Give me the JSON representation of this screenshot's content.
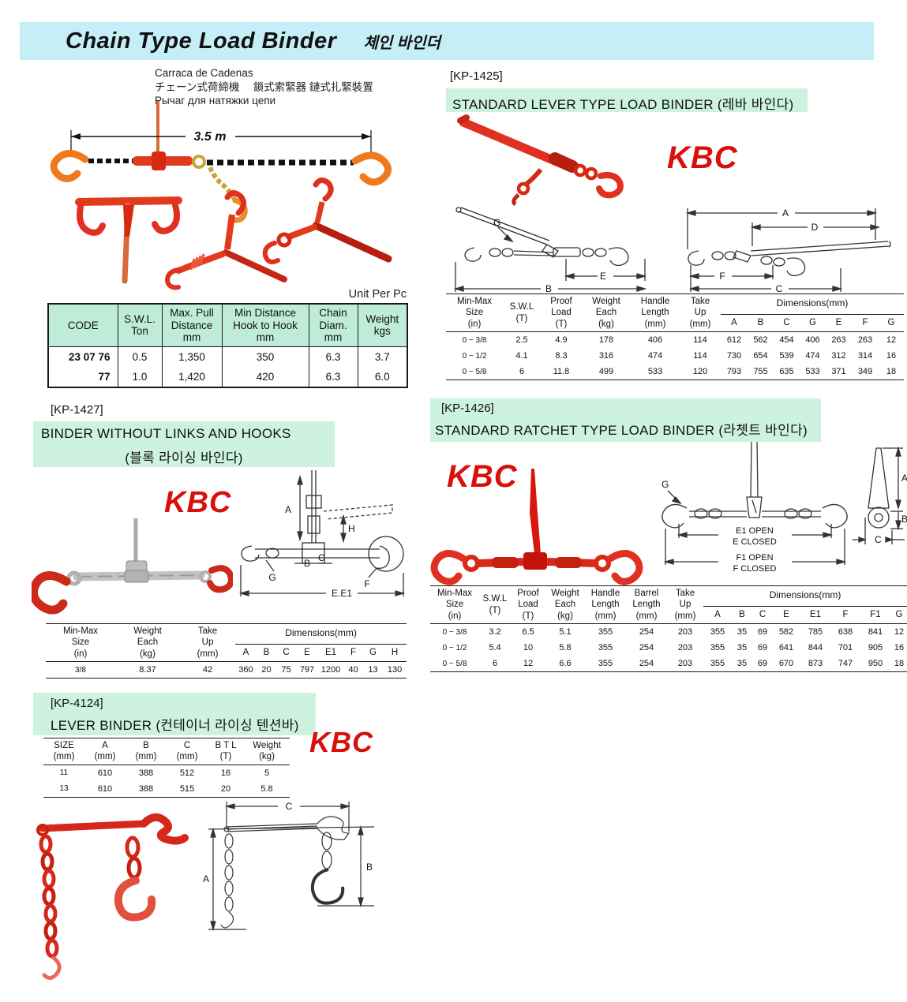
{
  "page": {
    "title": "Chain Type Load Binder",
    "title_kr": "체인 바인더",
    "brand": "KBC",
    "languages": {
      "es": "Carraca de Cadenas",
      "ja_zh": "チェーン式荷締機　 鎖式索緊器 鏈式扎緊裝置",
      "ru": "Рычаг для натяжки цепи"
    },
    "unit_note": "Unit Per Pc"
  },
  "overview": {
    "length_label": "3.5 m"
  },
  "main_table": {
    "headers": [
      "CODE",
      "S.W.L.\nTon",
      "Max. Pull\nDistance\nmm",
      "Min Distance\nHook to Hook\nmm",
      "Chain\nDiam.\nmm",
      "Weight\nkgs"
    ],
    "rows": [
      [
        "23 07 76",
        "0.5",
        "1,350",
        "350",
        "6.3",
        "3.7"
      ],
      [
        "77",
        "1.0",
        "1,420",
        "420",
        "6.3",
        "6.0"
      ]
    ]
  },
  "kp1425": {
    "code": "[KP-1425]",
    "title": "STANDARD LEVER TYPE LOAD BINDER (레바 바인다)",
    "diagram": {
      "g": "G",
      "e": "E",
      "b": "B",
      "a": "A",
      "d": "D",
      "f": "F",
      "c": "C"
    },
    "table": {
      "col_headers": [
        "Min-Max\nSize\n(in)",
        "S.W.L\n(T)",
        "Proof\nLoad\n(T)",
        "Weight\nEach\n(kg)",
        "Handle\nLength\n(mm)",
        "Take\nUp\n(mm)"
      ],
      "dim_title": "Dimensions(mm)",
      "dim_cols": [
        "A",
        "B",
        "C",
        "G",
        "E",
        "F",
        "G"
      ],
      "rows": [
        [
          "0 ~ 3/8",
          "2.5",
          "4.9",
          "178",
          "406",
          "114",
          "612",
          "562",
          "454",
          "406",
          "263",
          "263",
          "12"
        ],
        [
          "0 ~ 1/2",
          "4.1",
          "8.3",
          "316",
          "474",
          "114",
          "730",
          "654",
          "539",
          "474",
          "312",
          "314",
          "16"
        ],
        [
          "0 ~ 5/8",
          "6",
          "11.8",
          "499",
          "533",
          "120",
          "793",
          "755",
          "635",
          "533",
          "371",
          "349",
          "18"
        ]
      ]
    }
  },
  "kp1426": {
    "code": "[KP-1426]",
    "title": "STANDARD RATCHET TYPE LOAD BINDER (라쳇트 바인다)",
    "diagram": {
      "g": "G",
      "e1_open": "E1 OPEN",
      "e_closed": "E CLOSED",
      "f1_open": "F1 OPEN",
      "f_closed": "F CLOSED",
      "a": "A",
      "b": "B",
      "c": "C"
    },
    "table": {
      "col_headers": [
        "Min-Max\nSize\n(in)",
        "S.W.L\n(T)",
        "Proof\nLoad\n(T)",
        "Weight\nEach\n(kg)",
        "Handle\nLength\n(mm)",
        "Barrel\nLength\n(mm)",
        "Take\nUp\n(mm)"
      ],
      "dim_title": "Dimensions(mm)",
      "dim_cols": [
        "A",
        "B",
        "C",
        "E",
        "E1",
        "F",
        "F1",
        "G"
      ],
      "rows": [
        [
          "0 ~ 3/8",
          "3.2",
          "6.5",
          "5.1",
          "355",
          "254",
          "203",
          "355",
          "35",
          "69",
          "582",
          "785",
          "638",
          "841",
          "12"
        ],
        [
          "0 ~ 1/2",
          "5.4",
          "10",
          "5.8",
          "355",
          "254",
          "203",
          "355",
          "35",
          "69",
          "641",
          "844",
          "701",
          "905",
          "16"
        ],
        [
          "0 ~ 5/8",
          "6",
          "12",
          "6.6",
          "355",
          "254",
          "203",
          "355",
          "35",
          "69",
          "670",
          "873",
          "747",
          "950",
          "18"
        ]
      ]
    }
  },
  "kp1427": {
    "code": "[KP-1427]",
    "title_line1": "BINDER WITHOUT LINKS AND HOOKS",
    "title_line2": "(블록 라이싱 바인다)",
    "diagram": {
      "a": "A",
      "h": "H",
      "b": "B",
      "c": "C",
      "g": "G",
      "f": "F",
      "ee1": "E.E1"
    },
    "table": {
      "col_headers": [
        "Min-Max\nSize\n(in)",
        "Weight\nEach\n(kg)",
        "Take\nUp\n(mm)"
      ],
      "dim_title": "Dimensions(mm)",
      "dim_cols": [
        "A",
        "B",
        "C",
        "E",
        "E1",
        "F",
        "G",
        "H"
      ],
      "rows": [
        [
          "3/8",
          "8.37",
          "42",
          "360",
          "20",
          "75",
          "797",
          "1200",
          "40",
          "13",
          "130"
        ]
      ]
    }
  },
  "kp4124": {
    "code": "[KP-4124]",
    "title": "LEVER BINDER (컨테이너 라이싱 텐션바)",
    "diagram": {
      "c": "C",
      "a": "A",
      "b": "B"
    },
    "table": {
      "col_headers": [
        "SIZE\n(mm)",
        "A\n(mm)",
        "B\n(mm)",
        "C\n(mm)",
        "B T L\n(T)",
        "Weight\n(kg)"
      ],
      "rows": [
        [
          "11",
          "610",
          "388",
          "512",
          "16",
          "5"
        ],
        [
          "13",
          "610",
          "388",
          "515",
          "20",
          "5.8"
        ]
      ]
    }
  },
  "colors": {
    "accent_red": "#d8100b",
    "title_bg": "#c6eef6",
    "section_bg": "#cdf3e0",
    "table_header_bg": "#bfecd9"
  }
}
